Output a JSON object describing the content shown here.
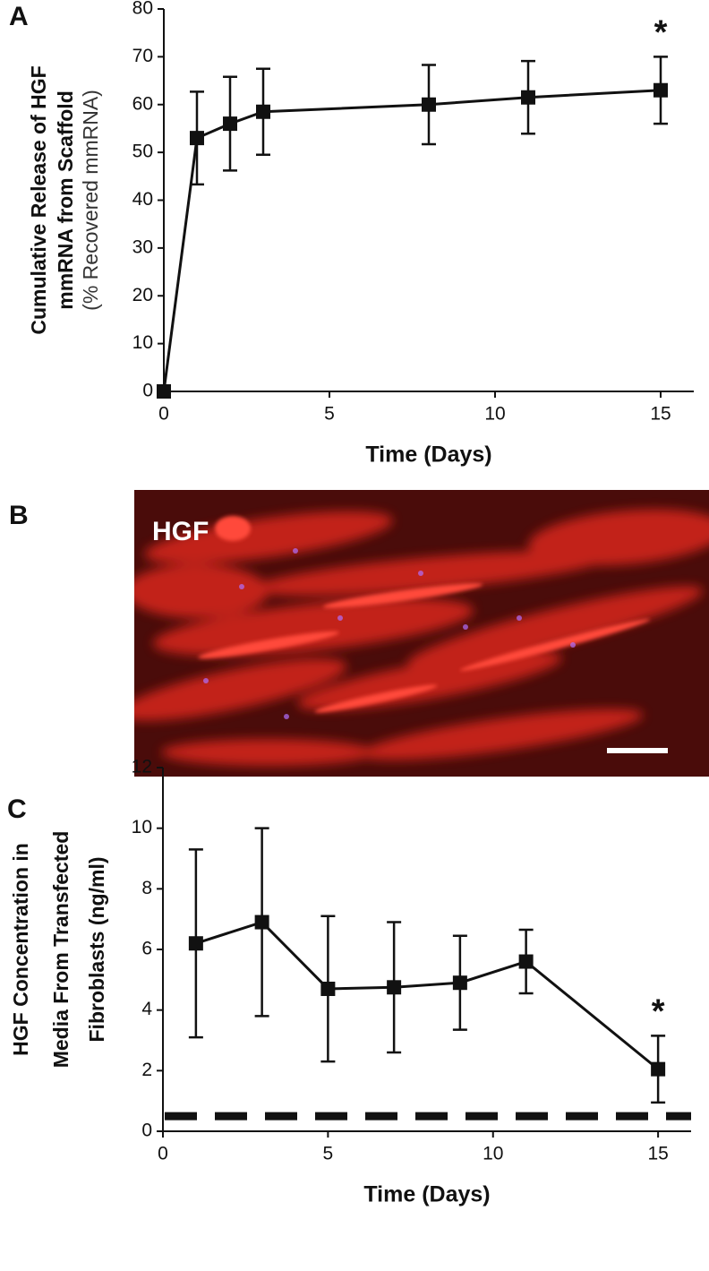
{
  "chart_data": [
    {
      "type": "line",
      "panel_label": "A",
      "ylabel": [
        "Cumulative Release of HGF",
        "mmRNA from Scaffold",
        "(% Recovered mmRNA)"
      ],
      "xlabel": "Time (Days)",
      "x": [
        0,
        1,
        2,
        3,
        8,
        11,
        15
      ],
      "series": [
        {
          "color": "#111111",
          "values": [
            0,
            53,
            56,
            58.5,
            60,
            61.5,
            63
          ],
          "errors": [
            0,
            9.7,
            9.8,
            9,
            8.3,
            7.6,
            7
          ]
        }
      ],
      "annotation": "*",
      "xlim": [
        0,
        16
      ],
      "xticks": [
        0,
        5,
        10,
        15
      ],
      "ylim": [
        0,
        80
      ],
      "yticks": [
        0,
        10,
        20,
        30,
        40,
        50,
        60,
        70,
        80
      ]
    },
    {
      "type": "line",
      "panel_label": "C",
      "ylabel": [
        "HGF Concentration in",
        "Media From Transfected",
        "Fibroblasts (ng/ml)"
      ],
      "xlabel": "Time (Days)",
      "x": [
        1,
        3,
        5,
        7,
        9,
        11,
        15
      ],
      "series": [
        {
          "color": "#111111",
          "values": [
            6.2,
            6.9,
            4.7,
            4.75,
            4.9,
            5.6,
            2.05
          ],
          "errors": [
            3.1,
            3.1,
            2.4,
            2.15,
            1.55,
            1.05,
            1.1
          ]
        }
      ],
      "annotation": "*",
      "reference_line": 0.5,
      "xlim": [
        0,
        16
      ],
      "xticks": [
        0,
        5,
        10,
        15
      ],
      "ylim": [
        0,
        12
      ],
      "yticks": [
        0,
        2,
        4,
        6,
        8,
        10,
        12
      ]
    }
  ],
  "image": {
    "panel_label": "B",
    "label": "HGF"
  }
}
